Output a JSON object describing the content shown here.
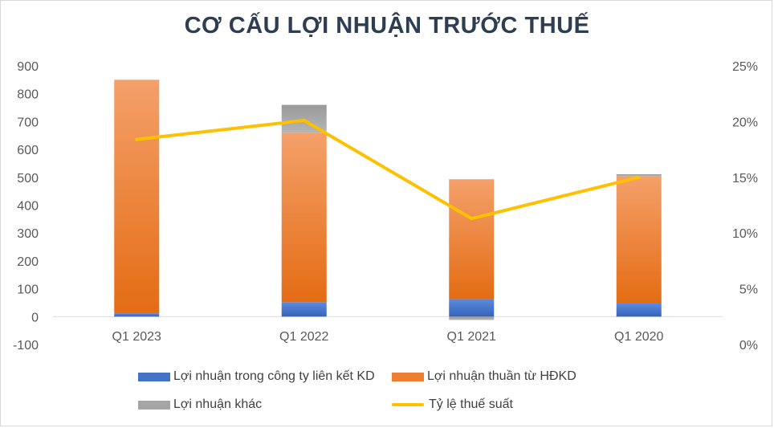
{
  "chart_data": {
    "type": "bar",
    "stacked": true,
    "title": "CƠ CẤU LỢI NHUẬN TRƯỚC THUẾ",
    "categories": [
      "Q1 2023",
      "Q1 2022",
      "Q1 2021",
      "Q1 2020"
    ],
    "series": [
      {
        "name": "Lợi nhuận trong công ty liên kết KD",
        "type": "bar",
        "axis": "left",
        "color": "#4472C4",
        "values": [
          12,
          52,
          63,
          47
        ]
      },
      {
        "name": "Lợi nhuận thuần từ HĐKD",
        "type": "bar",
        "axis": "left",
        "color": "#ED7D31",
        "values": [
          838,
          608,
          430,
          457
        ]
      },
      {
        "name": "Lợi nhuận khác",
        "type": "bar",
        "axis": "left",
        "color": "#A5A5A5",
        "values": [
          0,
          100,
          -12,
          7
        ]
      },
      {
        "name": "Tỷ lệ thuế suất",
        "type": "line",
        "axis": "right",
        "color": "#FFC000",
        "values": [
          18.4,
          20.1,
          11.3,
          15.0
        ]
      }
    ],
    "y_left": {
      "min": -100,
      "max": 900,
      "ticks": [
        -100,
        0,
        100,
        200,
        300,
        400,
        500,
        600,
        700,
        800,
        900
      ]
    },
    "y_right": {
      "min": 0,
      "max": 25,
      "ticks": [
        "0%",
        "5%",
        "10%",
        "15%",
        "20%",
        "25%"
      ]
    },
    "legend_position": "bottom",
    "grid": false
  }
}
